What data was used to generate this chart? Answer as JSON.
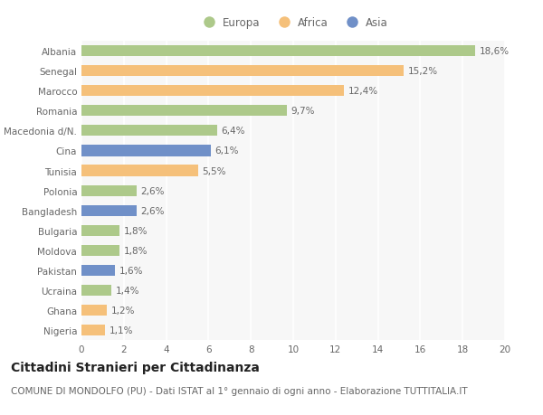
{
  "countries": [
    "Albania",
    "Senegal",
    "Marocco",
    "Romania",
    "Macedonia d/N.",
    "Cina",
    "Tunisia",
    "Polonia",
    "Bangladesh",
    "Bulgaria",
    "Moldova",
    "Pakistan",
    "Ucraina",
    "Ghana",
    "Nigeria"
  ],
  "values": [
    18.6,
    15.2,
    12.4,
    9.7,
    6.4,
    6.1,
    5.5,
    2.6,
    2.6,
    1.8,
    1.8,
    1.6,
    1.4,
    1.2,
    1.1
  ],
  "labels": [
    "18,6%",
    "15,2%",
    "12,4%",
    "9,7%",
    "6,4%",
    "6,1%",
    "5,5%",
    "2,6%",
    "2,6%",
    "1,8%",
    "1,8%",
    "1,6%",
    "1,4%",
    "1,2%",
    "1,1%"
  ],
  "continents": [
    "Europa",
    "Africa",
    "Africa",
    "Europa",
    "Europa",
    "Asia",
    "Africa",
    "Europa",
    "Asia",
    "Europa",
    "Europa",
    "Asia",
    "Europa",
    "Africa",
    "Africa"
  ],
  "colors": {
    "Europa": "#adc98a",
    "Africa": "#f5c07a",
    "Asia": "#7090c8"
  },
  "legend_order": [
    "Europa",
    "Africa",
    "Asia"
  ],
  "title": "Cittadini Stranieri per Cittadinanza",
  "subtitle": "COMUNE DI MONDOLFO (PU) - Dati ISTAT al 1° gennaio di ogni anno - Elaborazione TUTTITALIA.IT",
  "xlim": [
    0,
    20
  ],
  "xticks": [
    0,
    2,
    4,
    6,
    8,
    10,
    12,
    14,
    16,
    18,
    20
  ],
  "bg_color": "#ffffff",
  "plot_bg_color": "#f7f7f7",
  "grid_color": "#ffffff",
  "bar_height": 0.55,
  "title_fontsize": 10,
  "subtitle_fontsize": 7.5,
  "label_fontsize": 7.5,
  "tick_fontsize": 7.5,
  "legend_fontsize": 8.5
}
